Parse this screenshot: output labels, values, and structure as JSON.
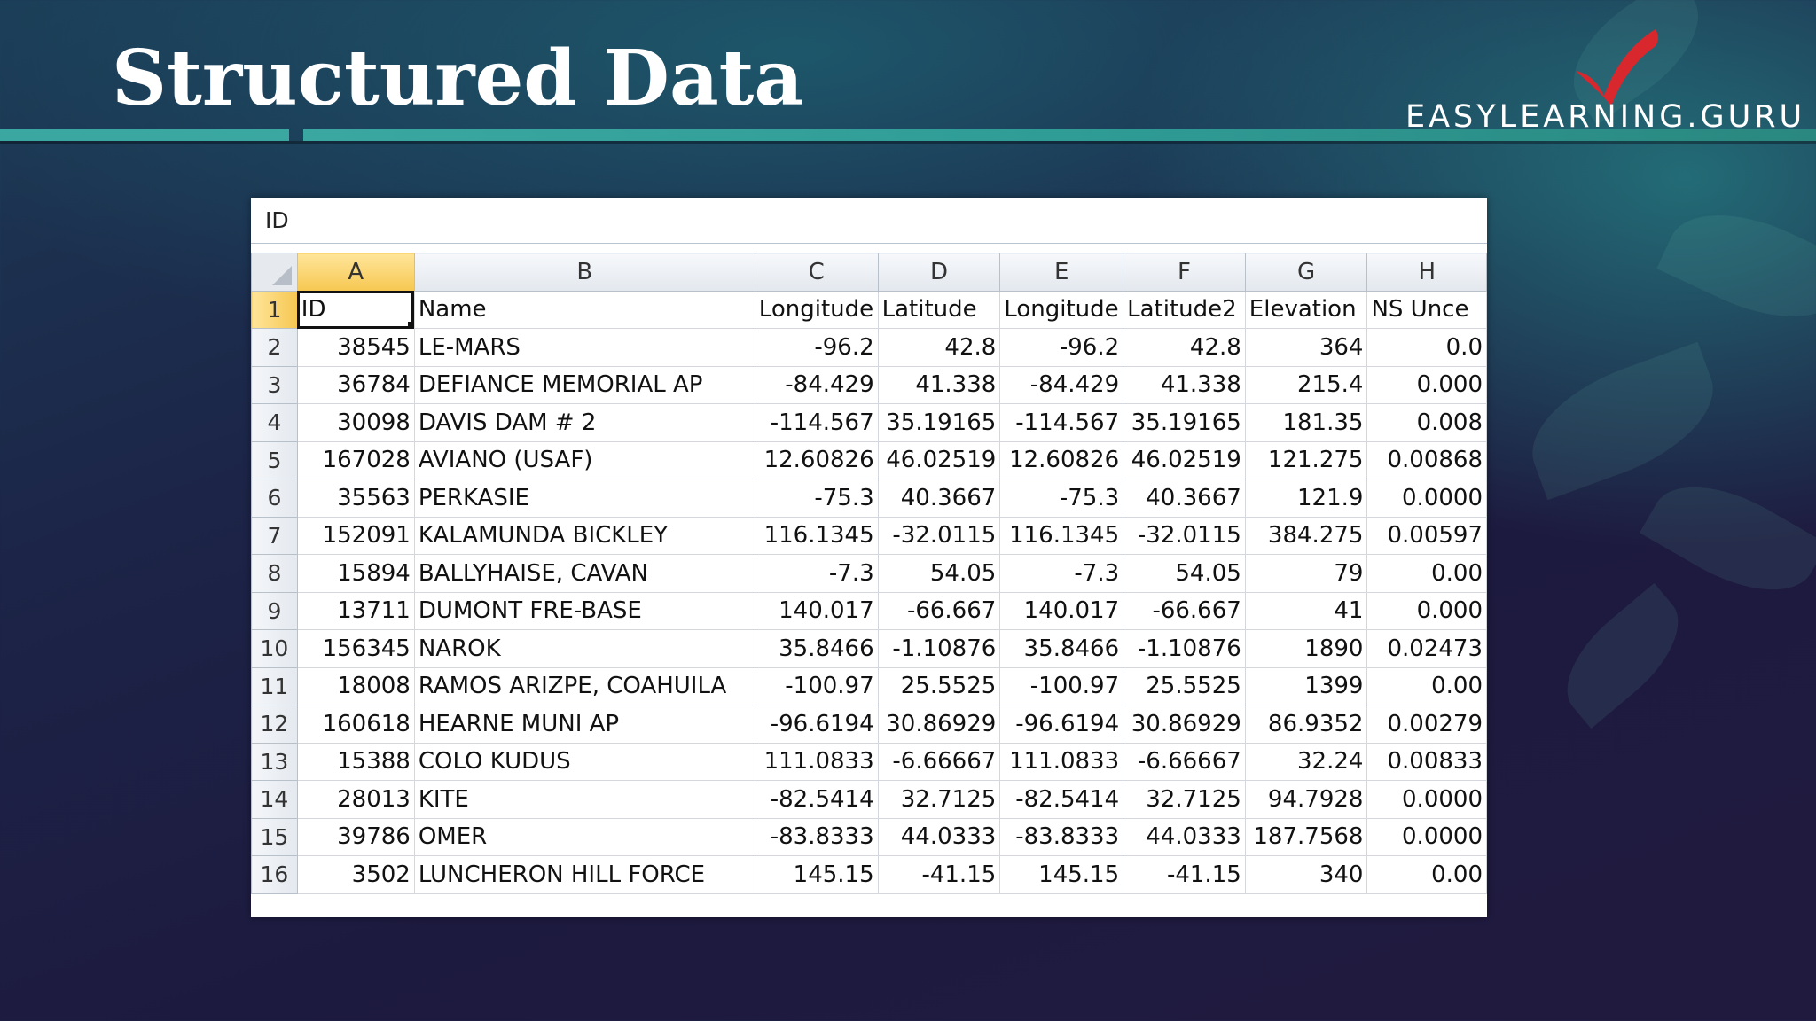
{
  "slide": {
    "title": "Structured Data",
    "logo_text": "EASYLEARNING.GURU"
  },
  "spreadsheet": {
    "formula_bar_value": "ID",
    "column_headers": [
      "A",
      "B",
      "C",
      "D",
      "E",
      "F",
      "G",
      "H"
    ],
    "rows": [
      {
        "n": "1",
        "cells": [
          "ID",
          "Name",
          "Longitude",
          "Latitude",
          "Longitude",
          "Latitude2",
          "Elevation",
          "NS Unce"
        ]
      },
      {
        "n": "2",
        "cells": [
          "38545",
          "LE-MARS",
          "-96.2",
          "42.8",
          "-96.2",
          "42.8",
          "364",
          "0.0"
        ]
      },
      {
        "n": "3",
        "cells": [
          "36784",
          "DEFIANCE MEMORIAL AP",
          "-84.429",
          "41.338",
          "-84.429",
          "41.338",
          "215.4",
          "0.000"
        ]
      },
      {
        "n": "4",
        "cells": [
          "30098",
          "DAVIS DAM # 2",
          "-114.567",
          "35.19165",
          "-114.567",
          "35.19165",
          "181.35",
          "0.008"
        ]
      },
      {
        "n": "5",
        "cells": [
          "167028",
          "AVIANO (USAF)",
          "12.60826",
          "46.02519",
          "12.60826",
          "46.02519",
          "121.275",
          "0.00868"
        ]
      },
      {
        "n": "6",
        "cells": [
          "35563",
          "PERKASIE",
          "-75.3",
          "40.3667",
          "-75.3",
          "40.3667",
          "121.9",
          "0.0000"
        ]
      },
      {
        "n": "7",
        "cells": [
          "152091",
          "KALAMUNDA BICKLEY",
          "116.1345",
          "-32.0115",
          "116.1345",
          "-32.0115",
          "384.275",
          "0.00597"
        ]
      },
      {
        "n": "8",
        "cells": [
          "15894",
          "BALLYHAISE, CAVAN",
          "-7.3",
          "54.05",
          "-7.3",
          "54.05",
          "79",
          "0.00"
        ]
      },
      {
        "n": "9",
        "cells": [
          "13711",
          "DUMONT FRE-BASE",
          "140.017",
          "-66.667",
          "140.017",
          "-66.667",
          "41",
          "0.000"
        ]
      },
      {
        "n": "10",
        "cells": [
          "156345",
          "NAROK",
          "35.8466",
          "-1.10876",
          "35.8466",
          "-1.10876",
          "1890",
          "0.02473"
        ]
      },
      {
        "n": "11",
        "cells": [
          "18008",
          "RAMOS ARIZPE, COAHUILA",
          "-100.97",
          "25.5525",
          "-100.97",
          "25.5525",
          "1399",
          "0.00"
        ]
      },
      {
        "n": "12",
        "cells": [
          "160618",
          "HEARNE MUNI AP",
          "-96.6194",
          "30.86929",
          "-96.6194",
          "30.86929",
          "86.9352",
          "0.00279"
        ]
      },
      {
        "n": "13",
        "cells": [
          "15388",
          "COLO KUDUS",
          "111.0833",
          "-6.66667",
          "111.0833",
          "-6.66667",
          "32.24",
          "0.00833"
        ]
      },
      {
        "n": "14",
        "cells": [
          "28013",
          "KITE",
          "-82.5414",
          "32.7125",
          "-82.5414",
          "32.7125",
          "94.7928",
          "0.0000"
        ]
      },
      {
        "n": "15",
        "cells": [
          "39786",
          "OMER",
          "-83.8333",
          "44.0333",
          "-83.8333",
          "44.0333",
          "187.7568",
          "0.0000"
        ]
      },
      {
        "n": "16",
        "cells": [
          "3502",
          "LUNCHERON HILL FORCE",
          "145.15",
          "-41.15",
          "145.15",
          "-41.15",
          "340",
          "0.00"
        ]
      }
    ]
  },
  "colors": {
    "accent_teal": "#3aa8a0",
    "active_header": "#f6c751",
    "check_red": "#d8282e"
  }
}
